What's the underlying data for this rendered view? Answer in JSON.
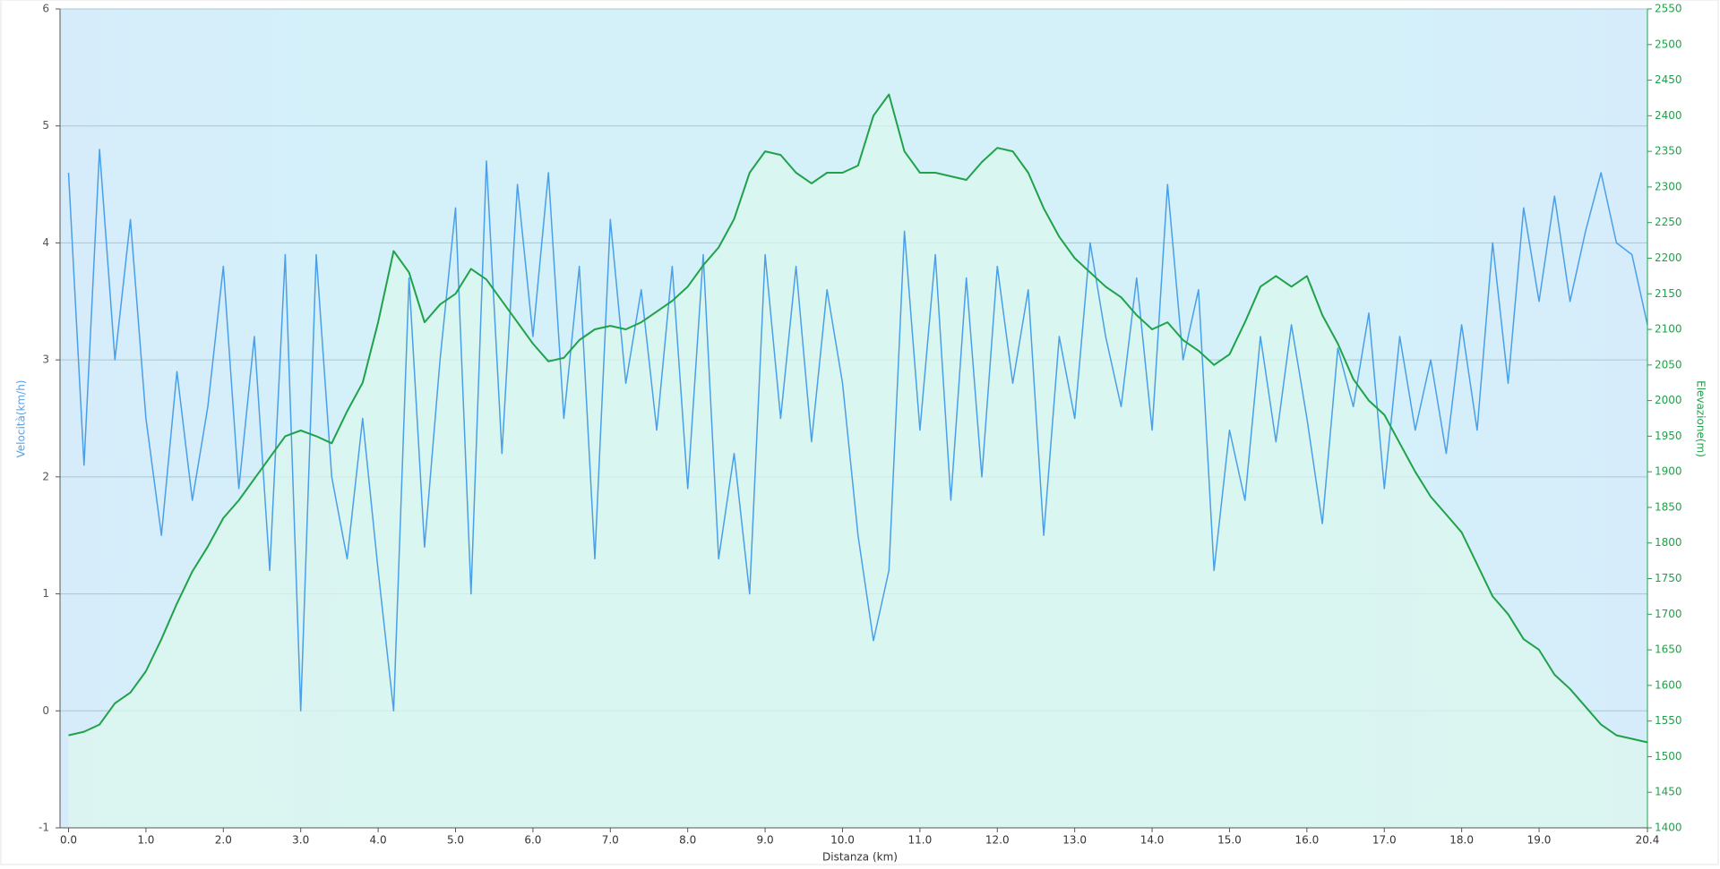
{
  "chart_data": {
    "type": "line",
    "x_label": "Distanza  (km)",
    "y_label": "Velocità(km/h)",
    "y2_label": "Elevazione(m)",
    "x": [
      0.0,
      0.2,
      0.4,
      0.6,
      0.8,
      1.0,
      1.2,
      1.4,
      1.6,
      1.8,
      2.0,
      2.2,
      2.4,
      2.6,
      2.8,
      3.0,
      3.2,
      3.4,
      3.6,
      3.8,
      4.0,
      4.2,
      4.4,
      4.6,
      4.8,
      5.0,
      5.2,
      5.4,
      5.6,
      5.8,
      6.0,
      6.2,
      6.4,
      6.6,
      6.8,
      7.0,
      7.2,
      7.4,
      7.6,
      7.8,
      8.0,
      8.2,
      8.4,
      8.6,
      8.8,
      9.0,
      9.2,
      9.4,
      9.6,
      9.8,
      10.0,
      10.2,
      10.4,
      10.6,
      10.8,
      11.0,
      11.2,
      11.4,
      11.6,
      11.8,
      12.0,
      12.2,
      12.4,
      12.6,
      12.8,
      13.0,
      13.2,
      13.4,
      13.6,
      13.8,
      14.0,
      14.2,
      14.4,
      14.6,
      14.8,
      15.0,
      15.2,
      15.4,
      15.6,
      15.8,
      16.0,
      16.2,
      16.4,
      16.6,
      16.8,
      17.0,
      17.2,
      17.4,
      17.6,
      17.8,
      18.0,
      18.2,
      18.4,
      18.6,
      18.8,
      19.0,
      19.2,
      19.4,
      19.6,
      19.8,
      20.0,
      20.2,
      20.4
    ],
    "series": [
      {
        "name": "Velocità",
        "color": "#4a9fe8",
        "axis": "y",
        "values": [
          4.6,
          2.1,
          4.8,
          3.0,
          4.2,
          2.5,
          1.5,
          2.9,
          1.8,
          2.6,
          3.8,
          1.9,
          3.2,
          1.2,
          3.9,
          0.0,
          3.9,
          2.0,
          1.3,
          2.5,
          1.2,
          0.0,
          3.7,
          1.4,
          3.0,
          4.3,
          1.0,
          4.7,
          2.2,
          4.5,
          3.2,
          4.6,
          2.5,
          3.8,
          1.3,
          4.2,
          2.8,
          3.6,
          2.4,
          3.8,
          1.9,
          3.9,
          1.3,
          2.2,
          1.0,
          3.9,
          2.5,
          3.8,
          2.3,
          3.6,
          2.8,
          1.5,
          0.6,
          1.2,
          4.1,
          2.4,
          3.9,
          1.8,
          3.7,
          2.0,
          3.8,
          2.8,
          3.6,
          1.5,
          3.2,
          2.5,
          4.0,
          3.2,
          2.6,
          3.7,
          2.4,
          4.5,
          3.0,
          3.6,
          1.2,
          2.4,
          1.8,
          3.2,
          2.3,
          3.3,
          2.5,
          1.6,
          3.1,
          2.6,
          3.4,
          1.9,
          3.2,
          2.4,
          3.0,
          2.2,
          3.3,
          2.4,
          4.0,
          2.8,
          4.3,
          3.5,
          4.4,
          3.5,
          4.1,
          4.6,
          4.0,
          3.9,
          3.3
        ]
      },
      {
        "name": "Elevazione",
        "color": "#1fa24a",
        "axis": "y2",
        "values": [
          1530,
          1535,
          1545,
          1575,
          1590,
          1620,
          1665,
          1715,
          1760,
          1795,
          1835,
          1860,
          1890,
          1920,
          1950,
          1958,
          1950,
          1940,
          1985,
          2025,
          2110,
          2210,
          2180,
          2110,
          2135,
          2150,
          2185,
          2170,
          2140,
          2110,
          2080,
          2055,
          2060,
          2085,
          2100,
          2105,
          2100,
          2110,
          2125,
          2140,
          2160,
          2190,
          2215,
          2255,
          2320,
          2350,
          2345,
          2320,
          2305,
          2320,
          2320,
          2330,
          2400,
          2430,
          2350,
          2320,
          2320,
          2315,
          2310,
          2335,
          2355,
          2350,
          2320,
          2270,
          2230,
          2200,
          2180,
          2160,
          2145,
          2120,
          2100,
          2110,
          2085,
          2070,
          2050,
          2065,
          2110,
          2160,
          2175,
          2160,
          2175,
          2120,
          2080,
          2030,
          2000,
          1980,
          1940,
          1900,
          1865,
          1840,
          1815,
          1770,
          1725,
          1700,
          1665,
          1650,
          1615,
          1595,
          1570,
          1545,
          1530,
          1525,
          1520
        ]
      }
    ],
    "xlim": [
      -0.11,
      20.4
    ],
    "xticks": [
      {
        "value": 0,
        "label": "0.0"
      },
      {
        "value": 1,
        "label": "1.0"
      },
      {
        "value": 2,
        "label": "2.0"
      },
      {
        "value": 3,
        "label": "3.0"
      },
      {
        "value": 4,
        "label": "4.0"
      },
      {
        "value": 5,
        "label": "5.0"
      },
      {
        "value": 6,
        "label": "6.0"
      },
      {
        "value": 7,
        "label": "7.0"
      },
      {
        "value": 8,
        "label": "8.0"
      },
      {
        "value": 9,
        "label": "9.0"
      },
      {
        "value": 10,
        "label": "10.0"
      },
      {
        "value": 11,
        "label": "11.0"
      },
      {
        "value": 12,
        "label": "12.0"
      },
      {
        "value": 13,
        "label": "13.0"
      },
      {
        "value": 14,
        "label": "14.0"
      },
      {
        "value": 15,
        "label": "15.0"
      },
      {
        "value": 16,
        "label": "16.0"
      },
      {
        "value": 17,
        "label": "17.0"
      },
      {
        "value": 18,
        "label": "18.0"
      },
      {
        "value": 19,
        "label": "19.0"
      },
      20.4
    ],
    "ylim": [
      -1,
      6
    ],
    "yticks": [
      -1,
      0,
      1,
      2,
      3,
      4,
      5,
      6
    ],
    "y2lim": [
      1400,
      2550
    ],
    "y2ticks": [
      1400,
      1450,
      1500,
      1550,
      1600,
      1650,
      1700,
      1750,
      1800,
      1850,
      1900,
      1950,
      2000,
      2050,
      2100,
      2150,
      2200,
      2250,
      2300,
      2350,
      2400,
      2450,
      2500,
      2550
    ],
    "grid": true
  }
}
